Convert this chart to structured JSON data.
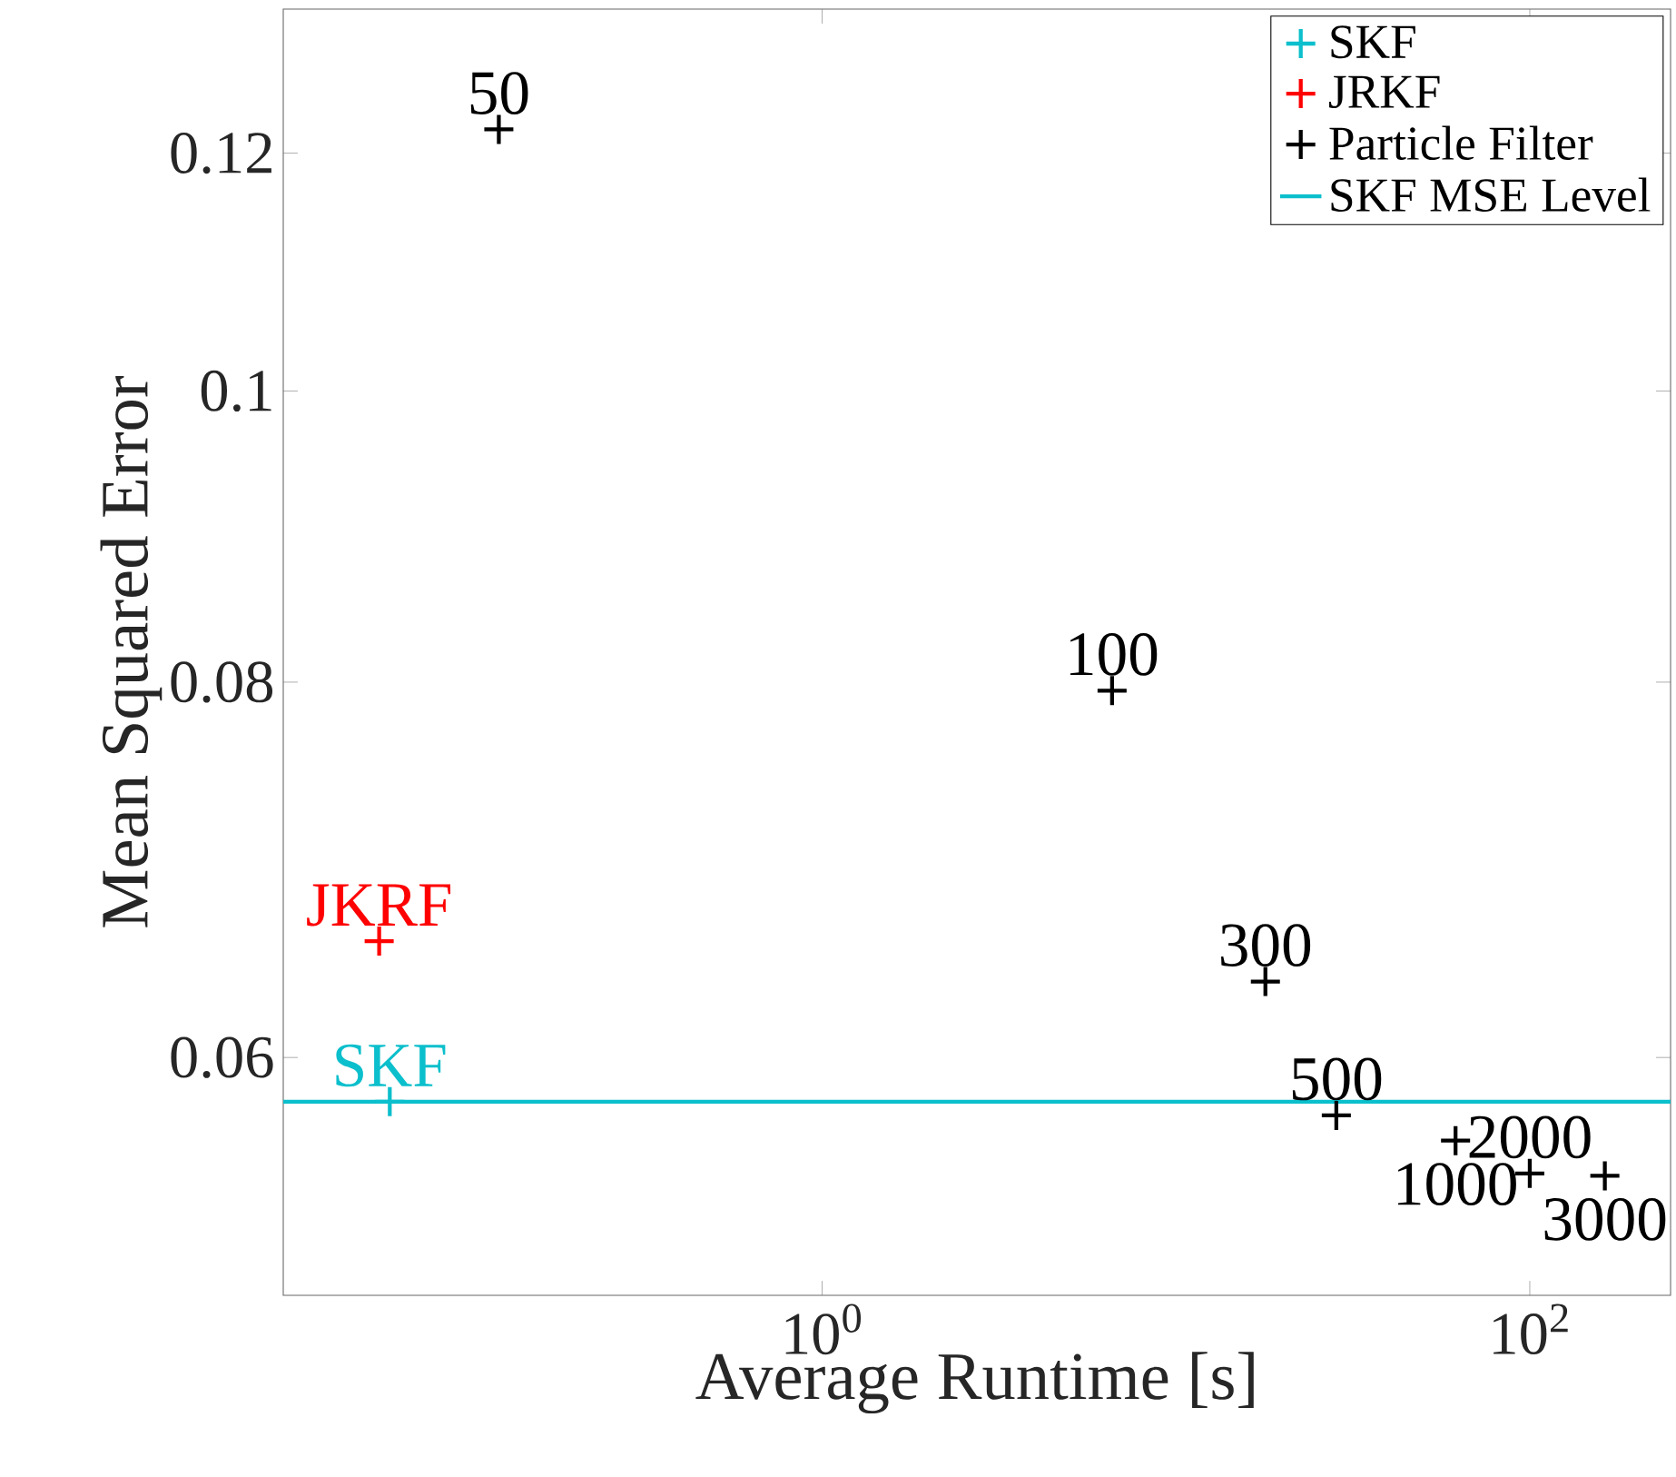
{
  "chart_data": {
    "type": "scatter",
    "xlabel": "Average Runtime [s]",
    "ylabel": "Mean Squared Error",
    "log": "xy",
    "marker": "cross",
    "legend": "top right",
    "grid": false,
    "xlim": [
      0.03,
      250
    ],
    "ylim": [
      0.05,
      0.134
    ],
    "xticks": [
      {
        "value": 1,
        "label": "10$^{0}$"
      },
      {
        "value": 100,
        "label": "10$^{2}$"
      }
    ],
    "yticks": [
      0.06,
      0.08,
      0.1,
      0.12
    ],
    "series": [
      {
        "name": "SKF",
        "color": "#0cbfcc",
        "x": [
          0.06
        ],
        "values": [
          0.058
        ]
      },
      {
        "name": "JRKF",
        "color": "#ff0000",
        "x": [
          0.056
        ],
        "values": [
          0.0656
        ]
      },
      {
        "name": "Particle Filter",
        "color": "#000000",
        "x": [
          0.122,
          6.6,
          17.9,
          28.4,
          61.7,
          100,
          163
        ],
        "values": [
          0.1222,
          0.0795,
          0.0636,
          0.0574,
          0.0563,
          0.0549,
          0.0548
        ]
      }
    ],
    "ref_lines": [
      {
        "axis": "y",
        "value": 0.058,
        "label": "SKF MSE Level",
        "color": "#0cbfcc",
        "line_style": "solid"
      }
    ],
    "annotations": [
      {
        "text": "SKF",
        "x": 0.06,
        "y": 0.058
      },
      {
        "text": "JKRF",
        "x": 0.056,
        "y": 0.0656
      },
      {
        "text": "50",
        "x": 0.122,
        "y": 0.1222
      },
      {
        "text": "100",
        "x": 6.6,
        "y": 0.0795
      },
      {
        "text": "300",
        "x": 17.9,
        "y": 0.0636
      },
      {
        "text": "500",
        "x": 28.4,
        "y": 0.0574
      },
      {
        "text": "1000",
        "x": 61.7,
        "y": 0.0563
      },
      {
        "text": "2000",
        "x": 100,
        "y": 0.0549
      },
      {
        "text": "3000",
        "x": 163,
        "y": 0.0548
      }
    ]
  }
}
